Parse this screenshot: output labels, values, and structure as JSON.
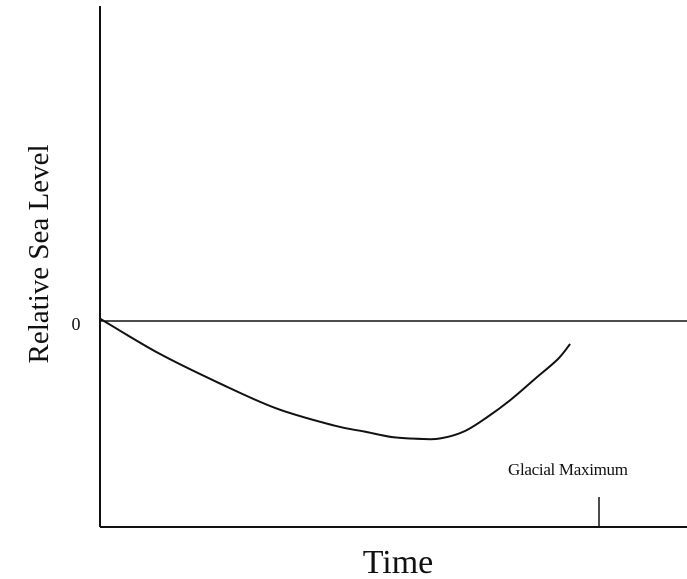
{
  "chart_data": {
    "type": "line",
    "title": "",
    "xlabel": "Time",
    "ylabel": "Relative Sea Level",
    "y_tick_labels": [
      "0"
    ],
    "xlim": [
      0,
      100
    ],
    "ylim": [
      -36,
      54
    ],
    "grid": false,
    "legend": "none",
    "series": [
      {
        "x": [
          0,
          10,
          20,
          30,
          40,
          45,
          50,
          55,
          58,
          62,
          66,
          70,
          74,
          78,
          80
        ],
        "y": [
          0,
          -6,
          -11,
          -15.5,
          -18.5,
          -19.5,
          -20.5,
          -20.8,
          -20.7,
          -19.5,
          -17,
          -14,
          -10.5,
          -7,
          -4.5
        ]
      }
    ],
    "annotations": [
      {
        "text": "Glacial Maximum",
        "x": 85
      }
    ],
    "colors": {
      "line": "#111111",
      "background": "#ffffff"
    }
  }
}
